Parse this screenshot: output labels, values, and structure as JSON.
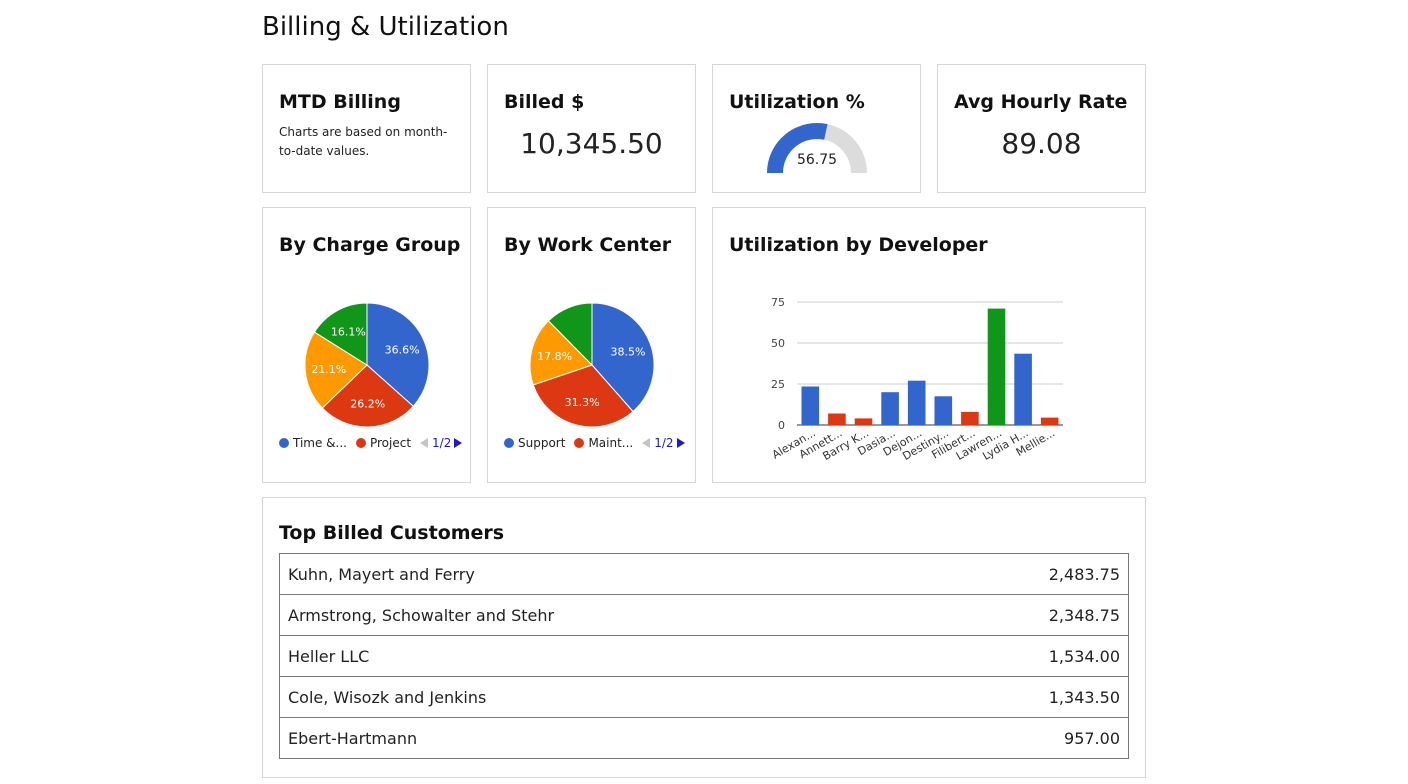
{
  "page": {
    "title": "Billing & Utilization"
  },
  "kpis": {
    "mtd": {
      "title": "MTD Billing",
      "description": "Charts are based on month-to-date values."
    },
    "billed": {
      "title": "Billed $",
      "value": "10,345.50"
    },
    "utilization": {
      "title": "Utilization %",
      "value": "56.75",
      "gauge_fraction": 0.5675,
      "color": "#3366cc",
      "track_color": "#dcdcdc"
    },
    "rate": {
      "title": "Avg Hourly Rate",
      "value": "89.08"
    }
  },
  "charge_group": {
    "title": "By Charge Group",
    "legend": [
      {
        "label": "Time &...",
        "color": "#3366cc"
      },
      {
        "label": "Project",
        "color": "#dc3912"
      }
    ],
    "pager": "1/2",
    "chart_data": {
      "type": "pie",
      "slices": [
        {
          "value": 36.6,
          "label": "36.6%",
          "color": "#3366cc"
        },
        {
          "value": 26.2,
          "label": "26.2%",
          "color": "#dc3912"
        },
        {
          "value": 21.1,
          "label": "21.1%",
          "color": "#ff9900"
        },
        {
          "value": 16.1,
          "label": "16.1%",
          "color": "#109618"
        }
      ]
    }
  },
  "work_center": {
    "title": "By Work Center",
    "legend": [
      {
        "label": "Support",
        "color": "#3366cc"
      },
      {
        "label": "Maint...",
        "color": "#dc3912"
      }
    ],
    "pager": "1/2",
    "chart_data": {
      "type": "pie",
      "slices": [
        {
          "value": 38.5,
          "label": "38.5%",
          "color": "#3366cc"
        },
        {
          "value": 31.3,
          "label": "31.3%",
          "color": "#dc3912"
        },
        {
          "value": 17.8,
          "label": "17.8%",
          "color": "#ff9900"
        },
        {
          "value": 12.4,
          "label": "",
          "color": "#109618"
        }
      ]
    }
  },
  "developer": {
    "title": "Utilization by Developer",
    "chart_data": {
      "type": "bar",
      "categories": [
        "Alexan...",
        "Annett...",
        "Barry K...",
        "Dasia...",
        "Dejon...",
        "Destiny...",
        "Filibert...",
        "Lawren...",
        "Lydia H...",
        "Mellie..."
      ],
      "values": [
        23.5,
        7,
        4,
        20,
        27,
        17.5,
        8,
        71,
        43.5,
        4.5
      ],
      "colors": [
        "#3366cc",
        "#dc3912",
        "#dc3912",
        "#3366cc",
        "#3366cc",
        "#3366cc",
        "#dc3912",
        "#109618",
        "#3366cc",
        "#dc3912"
      ],
      "yticks": [
        0,
        25,
        50,
        75
      ],
      "ylim": [
        0,
        75
      ],
      "grid": true
    }
  },
  "customers": {
    "title": "Top Billed Customers",
    "rows": [
      {
        "name": "Kuhn, Mayert and Ferry",
        "value": "2,483.75"
      },
      {
        "name": "Armstrong, Schowalter and Stehr",
        "value": "2,348.75"
      },
      {
        "name": "Heller LLC",
        "value": "1,534.00"
      },
      {
        "name": "Cole, Wisozk and Jenkins",
        "value": "1,343.50"
      },
      {
        "name": "Ebert-Hartmann",
        "value": "957.00"
      }
    ]
  }
}
